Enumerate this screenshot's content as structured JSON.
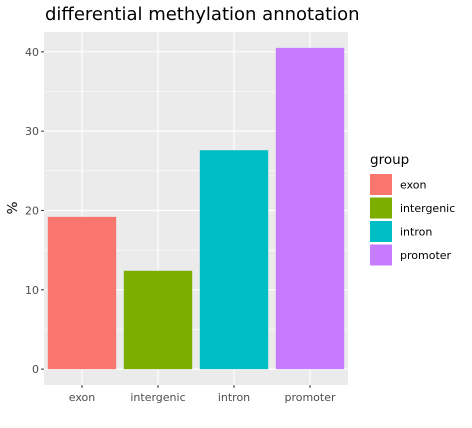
{
  "chart_data": {
    "type": "bar",
    "title": "differential methylation annotation",
    "xlabel": "",
    "ylabel": "%",
    "categories": [
      "exon",
      "intergenic",
      "intron",
      "promoter"
    ],
    "values": [
      19.2,
      12.4,
      27.6,
      40.5
    ],
    "colors": [
      "#F8766D",
      "#7CAE00",
      "#00BFC4",
      "#C77CFF"
    ],
    "yticks": [
      0,
      10,
      20,
      30,
      40
    ],
    "ylim": [
      -2.0,
      42.5
    ],
    "grid": true,
    "panel_background": "#EBEBEB",
    "legend": {
      "title": "group",
      "entries": [
        "exon",
        "intergenic",
        "intron",
        "promoter"
      ],
      "position": "right"
    }
  }
}
